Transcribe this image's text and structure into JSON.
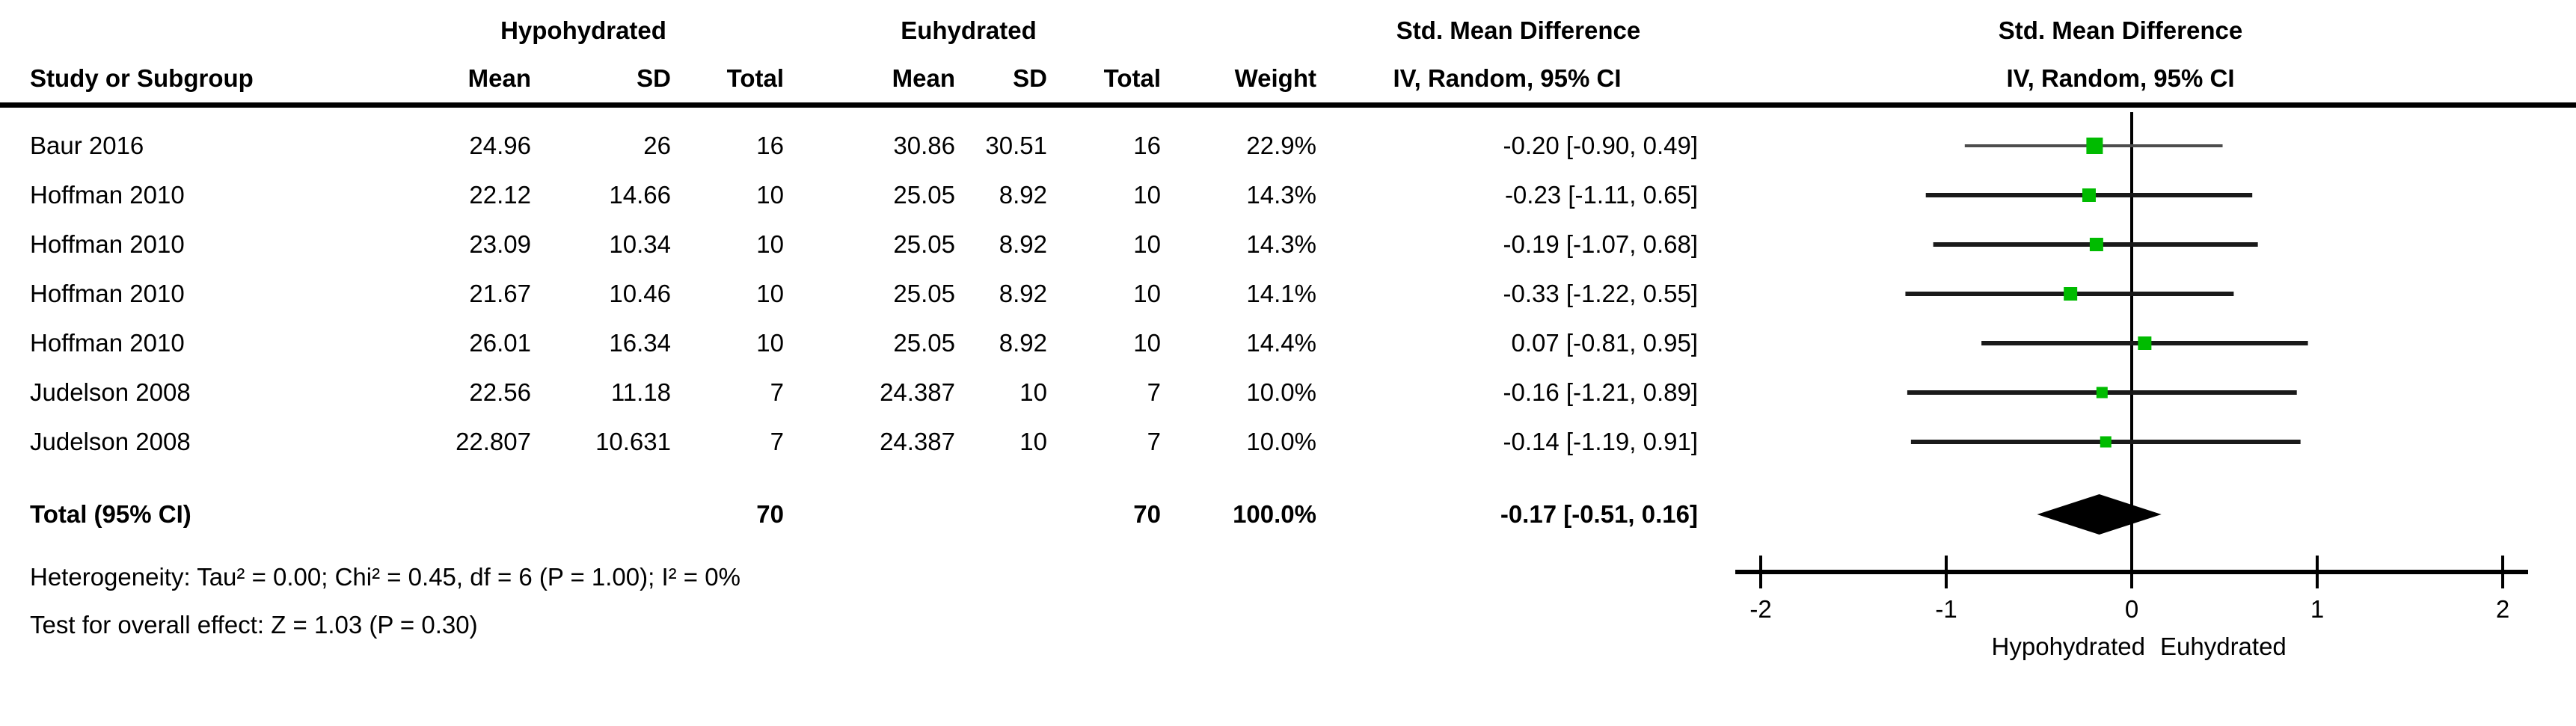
{
  "figure_type": "forest-plot (meta-analysis, RevMan style)",
  "headers": {
    "group1": "Hypohydrated",
    "group2": "Euhydrated",
    "effect_title": "Std. Mean Difference",
    "effect_sub": "IV, Random, 95% CI",
    "plot_title": "Std. Mean Difference",
    "plot_sub": "IV, Random, 95% CI",
    "study": "Study or Subgroup",
    "mean": "Mean",
    "sd": "SD",
    "total": "Total",
    "weight": "Weight"
  },
  "rows": [
    {
      "study": "Baur 2016",
      "mean1": "24.96",
      "sd1": "26",
      "total1": "16",
      "mean2": "30.86",
      "sd2": "30.51",
      "total2": "16",
      "weight": "22.9%",
      "ci": "-0.20 [-0.90, 0.49]"
    },
    {
      "study": "Hoffman 2010",
      "mean1": "22.12",
      "sd1": "14.66",
      "total1": "10",
      "mean2": "25.05",
      "sd2": "8.92",
      "total2": "10",
      "weight": "14.3%",
      "ci": "-0.23 [-1.11, 0.65]"
    },
    {
      "study": "Hoffman 2010",
      "mean1": "23.09",
      "sd1": "10.34",
      "total1": "10",
      "mean2": "25.05",
      "sd2": "8.92",
      "total2": "10",
      "weight": "14.3%",
      "ci": "-0.19 [-1.07, 0.68]"
    },
    {
      "study": "Hoffman 2010",
      "mean1": "21.67",
      "sd1": "10.46",
      "total1": "10",
      "mean2": "25.05",
      "sd2": "8.92",
      "total2": "10",
      "weight": "14.1%",
      "ci": "-0.33 [-1.22, 0.55]"
    },
    {
      "study": "Hoffman 2010",
      "mean1": "26.01",
      "sd1": "16.34",
      "total1": "10",
      "mean2": "25.05",
      "sd2": "8.92",
      "total2": "10",
      "weight": "14.4%",
      "ci": "0.07 [-0.81, 0.95]"
    },
    {
      "study": "Judelson 2008",
      "mean1": "22.56",
      "sd1": "11.18",
      "total1": "7",
      "mean2": "24.387",
      "sd2": "10",
      "total2": "7",
      "weight": "10.0%",
      "ci": "-0.16 [-1.21, 0.89]"
    },
    {
      "study": "Judelson 2008",
      "mean1": "22.807",
      "sd1": "10.631",
      "total1": "7",
      "mean2": "24.387",
      "sd2": "10",
      "total2": "7",
      "weight": "10.0%",
      "ci": "-0.14 [-1.19, 0.91]"
    }
  ],
  "total": {
    "label": "Total (95% CI)",
    "n1": "70",
    "n2": "70",
    "weight": "100.0%",
    "ci": "-0.17 [-0.51, 0.16]"
  },
  "footnotes": {
    "heterogeneity": "Heterogeneity: Tau² = 0.00; Chi² = 0.45, df = 6 (P = 1.00); I² = 0%",
    "overall_effect": "Test for overall effect: Z = 1.03 (P = 0.30)"
  },
  "chart_data": {
    "type": "forest",
    "title": "Std. Mean Difference",
    "method": "IV, Random, 95% CI",
    "xlim": [
      -2.14,
      2.14
    ],
    "x_ticks": [
      -2,
      -1,
      0,
      1,
      2
    ],
    "zero_line": 0,
    "favours_left": "Hypohydrated",
    "favours_right": "Euhydrated",
    "studies": [
      {
        "label": "Baur 2016",
        "est": -0.2,
        "lo": -0.9,
        "hi": 0.49,
        "weight": 22.9,
        "thin_line": true
      },
      {
        "label": "Hoffman 2010",
        "est": -0.23,
        "lo": -1.11,
        "hi": 0.65,
        "weight": 14.3,
        "thin_line": false
      },
      {
        "label": "Hoffman 2010",
        "est": -0.19,
        "lo": -1.07,
        "hi": 0.68,
        "weight": 14.3,
        "thin_line": false
      },
      {
        "label": "Hoffman 2010",
        "est": -0.33,
        "lo": -1.22,
        "hi": 0.55,
        "weight": 14.1,
        "thin_line": false
      },
      {
        "label": "Hoffman 2010",
        "est": 0.07,
        "lo": -0.81,
        "hi": 0.95,
        "weight": 14.4,
        "thin_line": false
      },
      {
        "label": "Judelson 2008",
        "est": -0.16,
        "lo": -1.21,
        "hi": 0.89,
        "weight": 10.0,
        "thin_line": false
      },
      {
        "label": "Judelson 2008",
        "est": -0.14,
        "lo": -1.19,
        "hi": 0.91,
        "weight": 10.0,
        "thin_line": false
      }
    ],
    "pooled": {
      "est": -0.17,
      "lo": -0.51,
      "hi": 0.16
    },
    "colors": {
      "marker": "#00bb00",
      "ci_line": "#1a1a1a",
      "thin_ci_line": "#4d4d4d",
      "diamond": "#000000",
      "axis": "#000000"
    }
  }
}
